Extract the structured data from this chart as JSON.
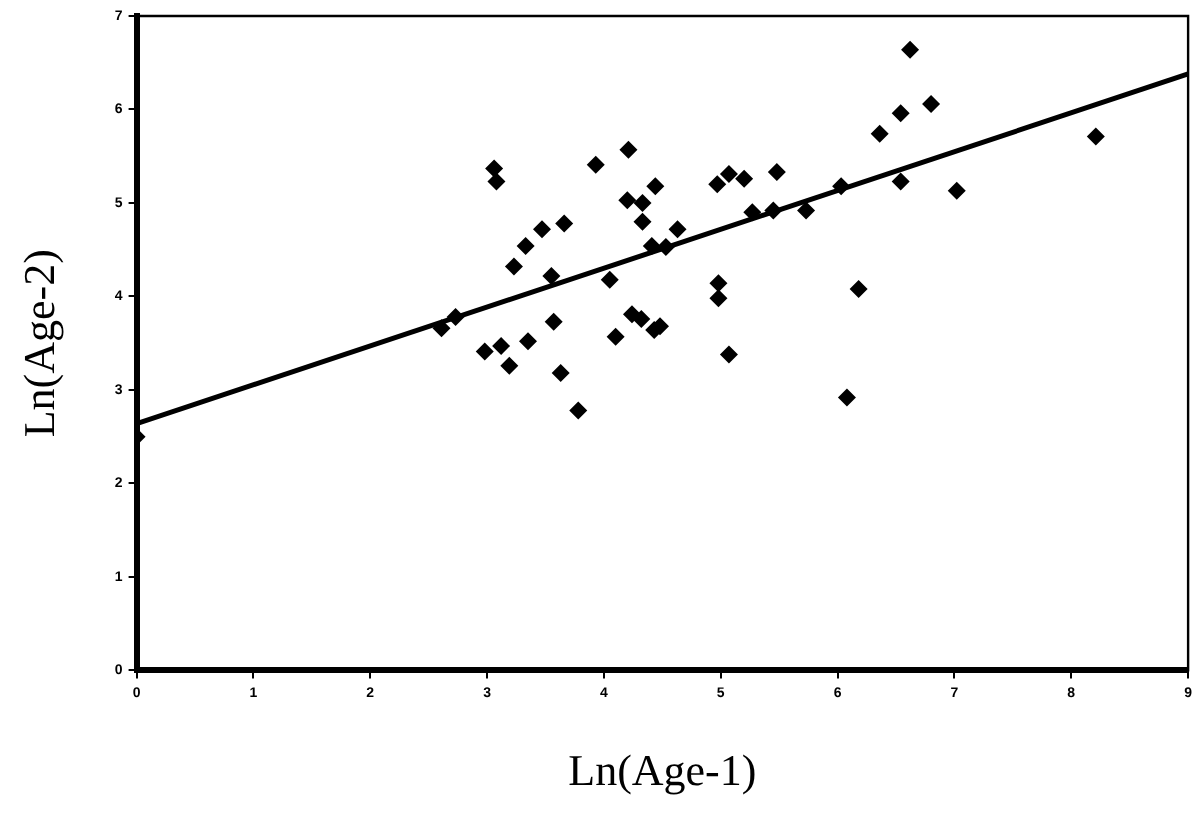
{
  "chart_data": {
    "type": "scatter",
    "xlabel": "Ln(Age-1)",
    "ylabel": "Ln(Age-2)",
    "xlim": [
      0,
      9
    ],
    "ylim": [
      0,
      7
    ],
    "xticks": [
      0,
      1,
      2,
      3,
      4,
      5,
      6,
      7,
      8,
      9
    ],
    "yticks": [
      0,
      1,
      2,
      3,
      4,
      5,
      6,
      7
    ],
    "grid": false,
    "legend": false,
    "marker": "diamond",
    "series": [
      {
        "color": "#000000",
        "x": [
          0,
          2.61,
          2.73,
          2.98,
          3.06,
          3.08,
          3.12,
          3.19,
          3.23,
          3.33,
          3.35,
          3.47,
          3.55,
          3.57,
          3.63,
          3.66,
          3.78,
          3.93,
          4.05,
          4.1,
          4.21,
          4.2,
          4.33,
          4.33,
          4.44,
          4.41,
          4.53,
          4.63,
          4.24,
          4.32,
          4.43,
          4.48,
          4.97,
          5.07,
          5.2,
          5.48,
          5.27,
          5.45,
          5.73,
          6.03,
          4.98,
          4.98,
          5.07,
          6.08,
          6.18,
          6.36,
          6.54,
          6.62,
          6.8,
          6.54,
          7.02,
          8.21
        ],
        "values": [
          2.5,
          3.66,
          3.78,
          3.41,
          5.37,
          5.23,
          3.47,
          3.26,
          4.32,
          4.54,
          3.52,
          4.72,
          4.22,
          3.73,
          3.18,
          4.78,
          2.78,
          5.41,
          4.18,
          3.57,
          5.57,
          5.03,
          5,
          4.8,
          5.18,
          4.54,
          4.53,
          4.72,
          3.81,
          3.76,
          3.64,
          3.68,
          5.2,
          5.31,
          5.26,
          5.33,
          4.9,
          4.92,
          4.92,
          5.18,
          4.14,
          3.98,
          3.38,
          2.92,
          4.08,
          5.74,
          5.96,
          6.64,
          6.06,
          5.23,
          5.13,
          5.71
        ]
      },
      {
        "type": "line",
        "color": "#000000",
        "marker": "none",
        "x": [
          0,
          9
        ],
        "values": [
          2.64,
          6.38
        ]
      }
    ]
  }
}
